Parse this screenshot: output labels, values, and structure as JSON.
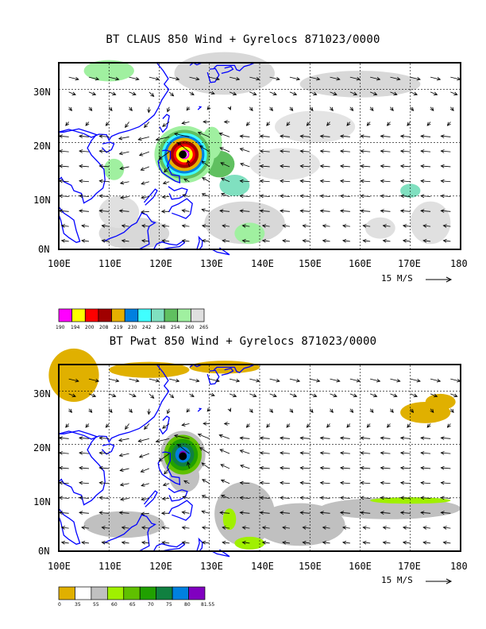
{
  "panels": [
    {
      "title": "BT CLAUS 850 Wind + Gyrelocs 871023/0000",
      "x_ticks": [
        "100E",
        "110E",
        "120E",
        "130E",
        "140E",
        "150E",
        "160E",
        "170E",
        "180"
      ],
      "y_ticks": [
        "30N",
        "20N",
        "10N",
        "0N"
      ],
      "scale_text": "15 M/S",
      "colorbar": {
        "labels": [
          "190",
          "194",
          "200",
          "208",
          "219",
          "230",
          "242",
          "248",
          "254",
          "260",
          "265"
        ],
        "colors": [
          "#ff00ff",
          "#ffff00",
          "#ff0000",
          "#a00000",
          "#e6b000",
          "#0080e0",
          "#40ffff",
          "#80e0c0",
          "#60c060",
          "#a0f0a0",
          "#e0e0e0"
        ]
      }
    },
    {
      "title": "BT Pwat 850 Wind + Gyrelocs 871023/0000",
      "x_ticks": [
        "100E",
        "110E",
        "120E",
        "130E",
        "140E",
        "150E",
        "160E",
        "170E",
        "180"
      ],
      "y_ticks": [
        "30N",
        "20N",
        "10N",
        "0N"
      ],
      "scale_text": "15 M/S",
      "colorbar": {
        "labels": [
          "0",
          "35",
          "55",
          "60",
          "65",
          "70",
          "75",
          "80",
          "81.55"
        ],
        "colors": [
          "#e0b000",
          "#ffffff",
          "#c0c0c0",
          "#a0f000",
          "#60c000",
          "#20a000",
          "#108040",
          "#0080e0",
          "#8000c0"
        ]
      }
    }
  ],
  "map": {
    "lon_range": [
      100,
      180
    ],
    "lat_range": [
      0,
      35
    ],
    "grid_lons": [
      110,
      120,
      130,
      140,
      150,
      160,
      170
    ],
    "grid_lats": [
      10,
      20,
      30
    ],
    "coast_color": "#0000ff",
    "storm_center": {
      "lon": 124.7,
      "lat": 17.8
    }
  }
}
